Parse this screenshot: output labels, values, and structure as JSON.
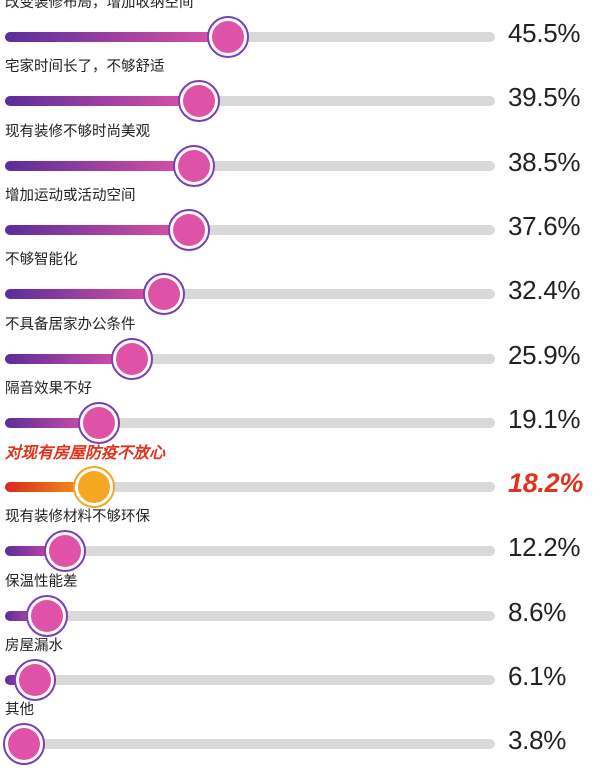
{
  "chart_data": {
    "type": "bar",
    "orientation": "horizontal",
    "categories": [
      "改变装修布局，增加收纳空间",
      "宅家时间长了，不够舒适",
      "现有装修不够时尚美观",
      "增加运动或活动空间",
      "不够智能化",
      "不具备居家办公条件",
      "隔音效果不好",
      "对现有房屋防疫不放心",
      "现有装修材料不够环保",
      "保温性能差",
      "房屋漏水",
      "其他"
    ],
    "values": [
      45.5,
      39.5,
      38.5,
      37.6,
      32.4,
      25.9,
      19.1,
      18.2,
      12.2,
      8.6,
      6.1,
      3.8
    ],
    "value_labels": [
      "45.5%",
      "39.5%",
      "38.5%",
      "37.6%",
      "32.4%",
      "25.9%",
      "19.1%",
      "18.2%",
      "12.2%",
      "8.6%",
      "6.1%",
      "3.8%"
    ],
    "highlight_index": 7,
    "xlim": [
      0,
      100
    ],
    "grid": false,
    "colors": {
      "track": "#d9d9d9",
      "fill_start": "#5b2d9a",
      "fill_end": "#e052a8",
      "knob": "#e052a8",
      "knob_ring": "#7a3fb0",
      "highlight_start": "#d9281c",
      "highlight_end": "#f7a21b",
      "highlight_knob": "#f5a623",
      "highlight_text": "#e0321e",
      "text": "#222222"
    }
  }
}
